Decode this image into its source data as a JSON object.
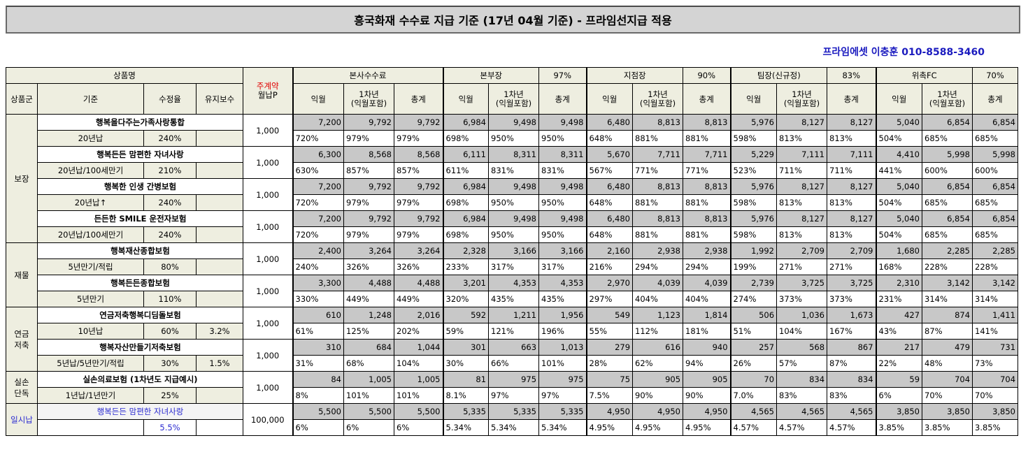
{
  "title": "흥국화재 수수료 지급 기준 (17년 04월 기준) - 프라임선지급 적용",
  "contact": "프라임에셋 이충훈 010-8588-3460",
  "header": {
    "product_name": "상품명",
    "weekly_contract": "주계약",
    "monthly_premium": "월납P",
    "group": "상품군",
    "base": "기준",
    "rate": "수정율",
    "maintenance": "유지보수",
    "sections": [
      {
        "name": "본사수수료",
        "pct": ""
      },
      {
        "name": "본부장",
        "pct": "97%"
      },
      {
        "name": "지점장",
        "pct": "90%"
      },
      {
        "name": "팀장(신규정)",
        "pct": "83%"
      },
      {
        "name": "위촉FC",
        "pct": "70%"
      }
    ],
    "sub_cols": [
      "익월",
      "1차년",
      "(익월포함)",
      "총계"
    ]
  },
  "groups": [
    {
      "name": "보장",
      "products": [
        {
          "name": "행복을다주는가족사랑통합",
          "base": "20년납",
          "rate": "240%",
          "maint": "",
          "monthly": "1,000",
          "nums": [
            "7,200",
            "9,792",
            "9,792",
            "6,984",
            "9,498",
            "9,498",
            "6,480",
            "8,813",
            "8,813",
            "5,976",
            "8,127",
            "8,127",
            "5,040",
            "6,854",
            "6,854"
          ],
          "pcts": [
            "720%",
            "979%",
            "979%",
            "698%",
            "950%",
            "950%",
            "648%",
            "881%",
            "881%",
            "598%",
            "813%",
            "813%",
            "504%",
            "685%",
            "685%"
          ]
        },
        {
          "name": "행복든든 맘편한 자녀사랑",
          "base": "20년납/100세만기",
          "rate": "210%",
          "maint": "",
          "monthly": "1,000",
          "nums": [
            "6,300",
            "8,568",
            "8,568",
            "6,111",
            "8,311",
            "8,311",
            "5,670",
            "7,711",
            "7,711",
            "5,229",
            "7,111",
            "7,111",
            "4,410",
            "5,998",
            "5,998"
          ],
          "pcts": [
            "630%",
            "857%",
            "857%",
            "611%",
            "831%",
            "831%",
            "567%",
            "771%",
            "771%",
            "523%",
            "711%",
            "711%",
            "441%",
            "600%",
            "600%"
          ]
        },
        {
          "name": "행복한 인생 간병보험",
          "base": "20년납↑",
          "rate": "240%",
          "maint": "",
          "monthly": "1,000",
          "nums": [
            "7,200",
            "9,792",
            "9,792",
            "6,984",
            "9,498",
            "9,498",
            "6,480",
            "8,813",
            "8,813",
            "5,976",
            "8,127",
            "8,127",
            "5,040",
            "6,854",
            "6,854"
          ],
          "pcts": [
            "720%",
            "979%",
            "979%",
            "698%",
            "950%",
            "950%",
            "648%",
            "881%",
            "881%",
            "598%",
            "813%",
            "813%",
            "504%",
            "685%",
            "685%"
          ]
        },
        {
          "name": "든든한 SMILE 운전자보험",
          "base": "20년납/100세만기",
          "rate": "240%",
          "maint": "",
          "monthly": "1,000",
          "nums": [
            "7,200",
            "9,792",
            "9,792",
            "6,984",
            "9,498",
            "9,498",
            "6,480",
            "8,813",
            "8,813",
            "5,976",
            "8,127",
            "8,127",
            "5,040",
            "6,854",
            "6,854"
          ],
          "pcts": [
            "720%",
            "979%",
            "979%",
            "698%",
            "950%",
            "950%",
            "648%",
            "881%",
            "881%",
            "598%",
            "813%",
            "813%",
            "504%",
            "685%",
            "685%"
          ]
        }
      ]
    },
    {
      "name": "재물",
      "products": [
        {
          "name": "행복재산종합보험",
          "base": "5년만기/적립",
          "rate": "80%",
          "maint": "",
          "monthly": "1,000",
          "nums": [
            "2,400",
            "3,264",
            "3,264",
            "2,328",
            "3,166",
            "3,166",
            "2,160",
            "2,938",
            "2,938",
            "1,992",
            "2,709",
            "2,709",
            "1,680",
            "2,285",
            "2,285"
          ],
          "pcts": [
            "240%",
            "326%",
            "326%",
            "233%",
            "317%",
            "317%",
            "216%",
            "294%",
            "294%",
            "199%",
            "271%",
            "271%",
            "168%",
            "228%",
            "228%"
          ]
        },
        {
          "name": "행복든든종합보험",
          "base": "5년만기",
          "rate": "110%",
          "maint": "",
          "monthly": "1,000",
          "nums": [
            "3,300",
            "4,488",
            "4,488",
            "3,201",
            "4,353",
            "4,353",
            "2,970",
            "4,039",
            "4,039",
            "2,739",
            "3,725",
            "3,725",
            "2,310",
            "3,142",
            "3,142"
          ],
          "pcts": [
            "330%",
            "449%",
            "449%",
            "320%",
            "435%",
            "435%",
            "297%",
            "404%",
            "404%",
            "274%",
            "373%",
            "373%",
            "231%",
            "314%",
            "314%"
          ]
        }
      ]
    },
    {
      "name": "연금\n저축",
      "products": [
        {
          "name": "연금저축행복디딤돌보험",
          "base": "10년납",
          "rate": "60%",
          "maint": "3.2%",
          "monthly": "1,000",
          "nums": [
            "610",
            "1,248",
            "2,016",
            "592",
            "1,211",
            "1,956",
            "549",
            "1,123",
            "1,814",
            "506",
            "1,036",
            "1,673",
            "427",
            "874",
            "1,411"
          ],
          "pcts": [
            "61%",
            "125%",
            "202%",
            "59%",
            "121%",
            "196%",
            "55%",
            "112%",
            "181%",
            "51%",
            "104%",
            "167%",
            "43%",
            "87%",
            "141%"
          ]
        },
        {
          "name": "행복자산만들기저축보험",
          "base": "5년납/5년만기/적립",
          "rate": "30%",
          "maint": "1.5%",
          "monthly": "1,000",
          "nums": [
            "310",
            "684",
            "1,044",
            "301",
            "663",
            "1,013",
            "279",
            "616",
            "940",
            "257",
            "568",
            "867",
            "217",
            "479",
            "731"
          ],
          "pcts": [
            "31%",
            "68%",
            "104%",
            "30%",
            "66%",
            "101%",
            "28%",
            "62%",
            "94%",
            "26%",
            "57%",
            "87%",
            "22%",
            "48%",
            "73%"
          ]
        }
      ]
    },
    {
      "name": "실손\n단독",
      "products": [
        {
          "name": "실손의료보험 (1차년도 지급예시)",
          "base": "1년납/1년만기",
          "rate": "25%",
          "maint": "",
          "monthly": "1,000",
          "nums": [
            "84",
            "1,005",
            "1,005",
            "81",
            "975",
            "975",
            "75",
            "905",
            "905",
            "70",
            "834",
            "834",
            "59",
            "704",
            "704"
          ],
          "pcts": [
            "8%",
            "101%",
            "101%",
            "8.1%",
            "97%",
            "97%",
            "7.5%",
            "90%",
            "90%",
            "7.0%",
            "83%",
            "83%",
            "6%",
            "70%",
            "70%"
          ]
        }
      ]
    },
    {
      "name": "일시납",
      "blue": true,
      "products": [
        {
          "name": "행복든든 맘편한 자녀사랑",
          "base": "",
          "rate": "5.5%",
          "maint": "",
          "monthly": "100,000",
          "nums": [
            "5,500",
            "5,500",
            "5,500",
            "5,335",
            "5,335",
            "5,335",
            "4,950",
            "4,950",
            "4,950",
            "4,565",
            "4,565",
            "4,565",
            "3,850",
            "3,850",
            "3,850"
          ],
          "pcts": [
            "6%",
            "6%",
            "6%",
            "5.34%",
            "5.34%",
            "5.34%",
            "4.95%",
            "4.95%",
            "4.95%",
            "4.57%",
            "4.57%",
            "4.57%",
            "3.85%",
            "3.85%",
            "3.85%"
          ]
        }
      ]
    }
  ]
}
